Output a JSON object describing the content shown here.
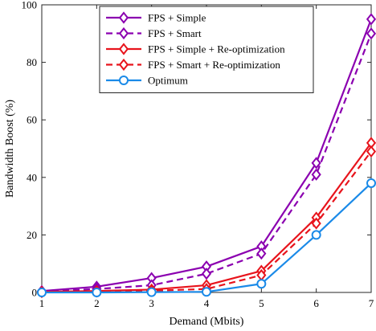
{
  "chart_data": {
    "type": "line",
    "title": "",
    "xlabel": "Demand (Mbits)",
    "ylabel": "Bandwidth Boost (%)",
    "xlim": [
      1,
      7
    ],
    "ylim": [
      0,
      100
    ],
    "xticks": [
      "1",
      "2",
      "3",
      "4",
      "5",
      "6",
      "7"
    ],
    "yticks": [
      "0",
      "20",
      "40",
      "60",
      "80",
      "100"
    ],
    "grid": false,
    "legend_position": "top-left",
    "x": [
      1,
      2,
      3,
      4,
      5,
      6,
      7
    ],
    "series": [
      {
        "name": "FPS + Simple",
        "values": [
          0.5,
          2,
          5,
          9,
          16,
          45,
          95
        ],
        "color": "#8B00B0",
        "dash": "solid",
        "marker": "diamond"
      },
      {
        "name": "FPS + Smart",
        "values": [
          0.3,
          1.2,
          2.5,
          6.5,
          13.5,
          41,
          90
        ],
        "color": "#8B00B0",
        "dash": "dashed",
        "marker": "diamond"
      },
      {
        "name": "FPS + Simple + Re-optimization",
        "values": [
          0.2,
          0.5,
          1,
          2.5,
          7.5,
          26,
          52
        ],
        "color": "#E8141C",
        "dash": "solid",
        "marker": "diamond"
      },
      {
        "name": "FPS + Smart + Re-optimization",
        "values": [
          0.1,
          0.3,
          0.6,
          1.2,
          6,
          24,
          49
        ],
        "color": "#E8141C",
        "dash": "dashed",
        "marker": "diamond"
      },
      {
        "name": "Optimum",
        "values": [
          0,
          0,
          0.1,
          0.2,
          3,
          20,
          38
        ],
        "color": "#1A8AE8",
        "dash": "solid",
        "marker": "circle"
      }
    ]
  }
}
